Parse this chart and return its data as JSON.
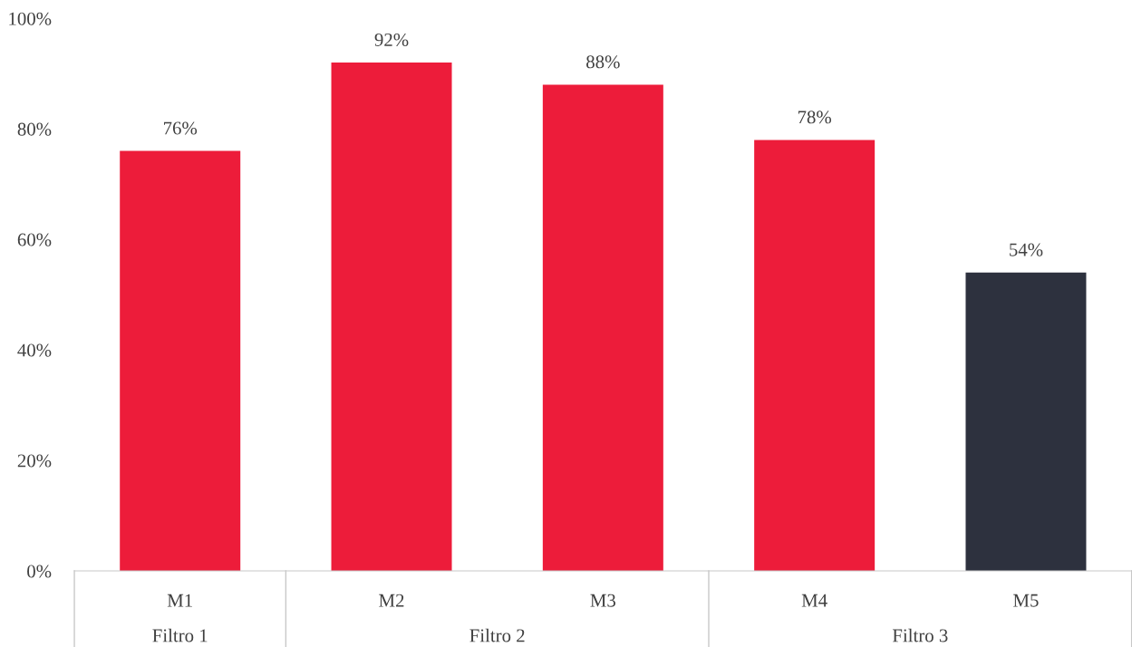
{
  "chart_data": {
    "type": "bar",
    "categories": [
      "M1",
      "M2",
      "M3",
      "M4",
      "M5"
    ],
    "values": [
      76,
      92,
      88,
      78,
      54
    ],
    "colors": [
      "#ed1c3a",
      "#ed1c3a",
      "#ed1c3a",
      "#ed1c3a",
      "#2d313e"
    ],
    "value_labels": [
      "76%",
      "92%",
      "88%",
      "78%",
      "54%"
    ],
    "ylim": [
      0,
      100
    ],
    "yticks": [
      {
        "value": 0,
        "label": "0%"
      },
      {
        "value": 20,
        "label": "20%"
      },
      {
        "value": 40,
        "label": "40%"
      },
      {
        "value": 60,
        "label": "60%"
      },
      {
        "value": 80,
        "label": "80%"
      },
      {
        "value": 100,
        "label": "100%"
      }
    ],
    "annotations": [
      "Filtro 1",
      "Filtro 2",
      "Filtro 3"
    ],
    "grid": false,
    "legend": false
  }
}
